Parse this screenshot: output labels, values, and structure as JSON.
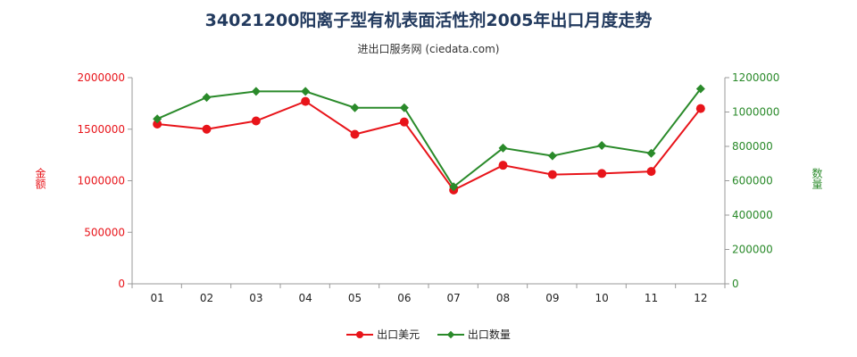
{
  "chart_data": {
    "type": "line",
    "title": "34021200阳离子型有机表面活性剂2005年出口月度走势",
    "subtitle": "进出口服务网 (ciedata.com)",
    "categories": [
      "01",
      "02",
      "03",
      "04",
      "05",
      "06",
      "07",
      "08",
      "09",
      "10",
      "11",
      "12"
    ],
    "y_left": {
      "label": "金额",
      "range": [
        0,
        2000000
      ],
      "ticks": [
        0,
        500000,
        1000000,
        1500000,
        2000000
      ]
    },
    "y_right": {
      "label": "数量",
      "range": [
        0,
        1200000
      ],
      "ticks": [
        0,
        200000,
        400000,
        600000,
        800000,
        1000000,
        1200000
      ]
    },
    "series": [
      {
        "name": "出口美元",
        "axis": "left",
        "color": "#e8141a",
        "marker": "circle",
        "values": [
          1550000,
          1500000,
          1580000,
          1770000,
          1450000,
          1570000,
          910000,
          1150000,
          1060000,
          1070000,
          1090000,
          1700000
        ]
      },
      {
        "name": "出口数量",
        "axis": "right",
        "color": "#2a8a2a",
        "marker": "diamond",
        "values": [
          960000,
          1085000,
          1120000,
          1120000,
          1025000,
          1025000,
          565000,
          790000,
          745000,
          805000,
          760000,
          1135000
        ]
      }
    ],
    "grid": false,
    "legend_position": "bottom"
  },
  "colors": {
    "left_axis": "#e8141a",
    "right_axis": "#2a8a2a",
    "axis_line": "#999999",
    "title": "#223a5e"
  }
}
